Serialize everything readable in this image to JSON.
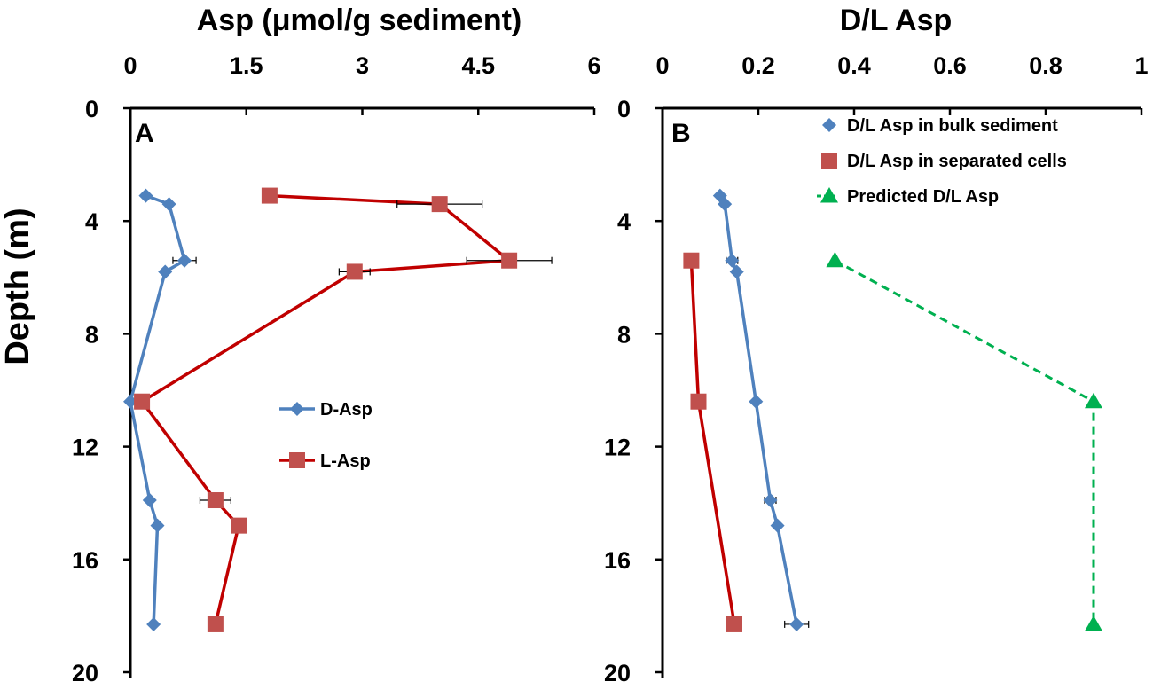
{
  "figure": {
    "ylabel": "Depth (m)"
  },
  "chart_data": [
    {
      "type": "line",
      "panel_label": "A",
      "title": "Asp (μmol/g sediment)",
      "xlabel": "Asp (μmol/g sediment)",
      "ylabel": "Depth (m)",
      "xlim": [
        0,
        6
      ],
      "ylim": [
        0,
        20
      ],
      "y_inverted": true,
      "xaxis_position": "top",
      "x_ticks": [
        "0",
        "1.5",
        "3",
        "4.5",
        "6"
      ],
      "y_ticks": [
        "0",
        "4",
        "8",
        "12",
        "16",
        "20"
      ],
      "legend_position": "center",
      "series": [
        {
          "name": "D-Asp",
          "color": "#4F81BD",
          "marker": "diamond",
          "line": "solid",
          "points": [
            {
              "x": 0.2,
              "y": 3.1
            },
            {
              "x": 0.5,
              "y": 3.4
            },
            {
              "x": 0.7,
              "y": 5.4,
              "xerr": 0.15
            },
            {
              "x": 0.45,
              "y": 5.8
            },
            {
              "x": 0.0,
              "y": 10.4
            },
            {
              "x": 0.25,
              "y": 13.9
            },
            {
              "x": 0.35,
              "y": 14.8
            },
            {
              "x": 0.3,
              "y": 18.3
            }
          ]
        },
        {
          "name": "L-Asp",
          "color": "#C0504D",
          "line_color": "#C00000",
          "marker": "square",
          "line": "solid",
          "points": [
            {
              "x": 1.8,
              "y": 3.1
            },
            {
              "x": 4.0,
              "y": 3.4,
              "xerr": 0.55
            },
            {
              "x": 4.9,
              "y": 5.4,
              "xerr": 0.55
            },
            {
              "x": 2.9,
              "y": 5.8,
              "xerr": 0.2
            },
            {
              "x": 0.15,
              "y": 10.4
            },
            {
              "x": 1.1,
              "y": 13.9,
              "xerr": 0.2
            },
            {
              "x": 1.4,
              "y": 14.8
            },
            {
              "x": 1.1,
              "y": 18.3
            }
          ]
        }
      ]
    },
    {
      "type": "line",
      "panel_label": "B",
      "title": "D/L Asp",
      "xlabel": "D/L Asp",
      "ylabel": "Depth (m)",
      "xlim": [
        0,
        1
      ],
      "ylim": [
        0,
        20
      ],
      "y_inverted": true,
      "xaxis_position": "top",
      "x_ticks": [
        "0",
        "0.2",
        "0.4",
        "0.6",
        "0.8",
        "1"
      ],
      "y_ticks": [
        "0",
        "4",
        "8",
        "12",
        "16",
        "20"
      ],
      "legend_position": "top-right",
      "series": [
        {
          "name": "D/L Asp in bulk sediment",
          "color": "#4F81BD",
          "marker": "diamond",
          "line": "solid",
          "points": [
            {
              "x": 0.12,
              "y": 3.1
            },
            {
              "x": 0.13,
              "y": 3.4
            },
            {
              "x": 0.145,
              "y": 5.4,
              "xerr": 0.012
            },
            {
              "x": 0.155,
              "y": 5.8
            },
            {
              "x": 0.195,
              "y": 10.4
            },
            {
              "x": 0.225,
              "y": 13.9,
              "xerr": 0.012
            },
            {
              "x": 0.24,
              "y": 14.8
            },
            {
              "x": 0.28,
              "y": 18.3,
              "xerr": 0.025
            }
          ]
        },
        {
          "name": "D/L Asp in separated cells",
          "color": "#C0504D",
          "line_color": "#C00000",
          "marker": "square",
          "line": "solid",
          "points": [
            {
              "x": 0.06,
              "y": 5.4
            },
            {
              "x": 0.075,
              "y": 10.4
            },
            {
              "x": 0.15,
              "y": 18.3
            }
          ]
        },
        {
          "name": "Predicted D/L Asp",
          "color": "#00B050",
          "marker": "triangle",
          "line": "dashed",
          "points": [
            {
              "x": 0.36,
              "y": 5.4
            },
            {
              "x": 0.9,
              "y": 10.4
            },
            {
              "x": 0.9,
              "y": 18.3
            }
          ]
        }
      ]
    }
  ]
}
